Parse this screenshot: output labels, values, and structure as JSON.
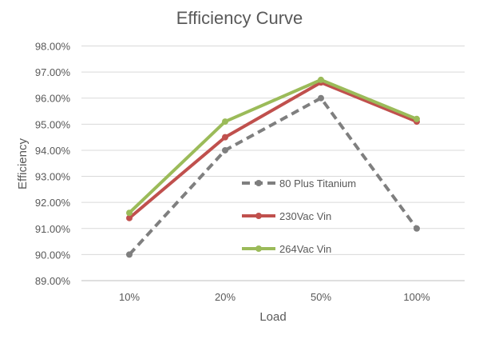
{
  "chart_data": {
    "type": "line",
    "title": "Efficiency Curve",
    "xlabel": "Load",
    "ylabel": "Efficiency",
    "categories": [
      "10%",
      "20%",
      "50%",
      "100%"
    ],
    "ylim": [
      89,
      98
    ],
    "yticks": [
      89,
      90,
      91,
      92,
      93,
      94,
      95,
      96,
      97,
      98
    ],
    "ytick_labels": [
      "89.00%",
      "90.00%",
      "91.00%",
      "92.00%",
      "93.00%",
      "94.00%",
      "95.00%",
      "96.00%",
      "97.00%",
      "98.00%"
    ],
    "grid": "horizontal",
    "legend_placement": "center-right inside",
    "series": [
      {
        "name": "80 Plus Titanium",
        "values": [
          90.0,
          94.0,
          96.0,
          91.0
        ],
        "color": "#7f7f7f",
        "dashed": true
      },
      {
        "name": "230Vac Vin",
        "values": [
          91.4,
          94.5,
          96.6,
          95.1
        ],
        "color": "#c0504d",
        "dashed": false
      },
      {
        "name": "264Vac Vin",
        "values": [
          91.6,
          95.1,
          96.7,
          95.2
        ],
        "color": "#9bbb59",
        "dashed": false
      }
    ]
  }
}
